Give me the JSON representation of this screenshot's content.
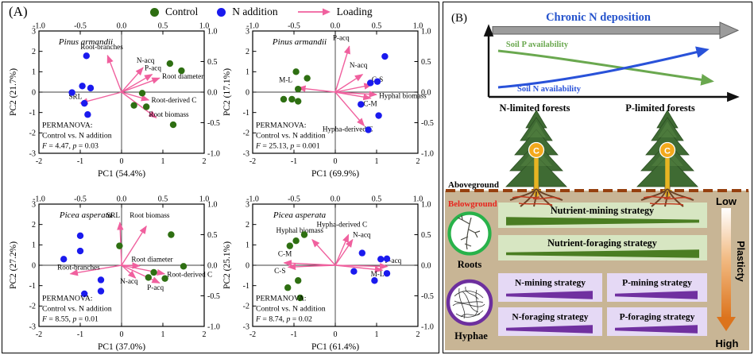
{
  "colors": {
    "control": "#2e6f12",
    "n_addition": "#1a1aee",
    "loading": "#f0609e"
  },
  "panel_a": {
    "label": "(A)",
    "legend": [
      {
        "label": "Control",
        "marker": "dot",
        "color_key": "control"
      },
      {
        "label": "N addition",
        "marker": "dot",
        "color_key": "n_addition"
      },
      {
        "label": "Loading",
        "marker": "arrow",
        "color_key": "loading"
      }
    ]
  },
  "chart_data": [
    {
      "type": "scatter",
      "species": "Pinus armandii",
      "xlabel": "PC1 (54.4%)",
      "ylabel": "PC2 (21.7%)",
      "xlim": [
        -2,
        2
      ],
      "ylim": [
        -3,
        3
      ],
      "loading_lim": [
        -1,
        1
      ],
      "ticks": {
        "bottom": [
          "-2",
          "-1",
          "0",
          "1",
          "2"
        ],
        "left": [
          "-3",
          "-2",
          "-1",
          "0",
          "1",
          "2",
          "3"
        ],
        "top": [
          "-1.0",
          "-0.5",
          "0.0",
          "0.5",
          "1.0"
        ],
        "right": [
          "-1.0",
          "-0.5",
          "0.0",
          "0.5",
          "1.0"
        ]
      },
      "permanova": {
        "title": "PERMANOVA:",
        "subtitle": "Control vs. N addition",
        "F": 4.47,
        "p": 0.03,
        "stat_parts": [
          {
            "t": "F",
            "i": true
          },
          {
            "t": " = 4.47, ",
            "i": false
          },
          {
            "t": "p",
            "i": true
          },
          {
            "t": " = 0.03",
            "i": false
          }
        ]
      },
      "loadings": [
        {
          "label": "Root-branches",
          "vector": [
            -0.17,
            0.6
          ],
          "label_pos": [
            -0.24,
            0.7
          ],
          "anchor": "middle"
        },
        {
          "label": "N-acq",
          "vector": [
            0.26,
            0.4
          ],
          "label_pos": [
            0.29,
            0.48
          ],
          "anchor": "middle"
        },
        {
          "label": "P-acq",
          "vector": [
            0.37,
            0.29
          ],
          "label_pos": [
            0.38,
            0.36
          ],
          "anchor": "middle"
        },
        {
          "label": "Root diameter",
          "vector": [
            0.46,
            0.23
          ],
          "label_pos": [
            0.49,
            0.22
          ],
          "anchor": "start"
        },
        {
          "label": "Root-derived C",
          "vector": [
            0.33,
            -0.13
          ],
          "label_pos": [
            0.36,
            -0.17
          ],
          "anchor": "start"
        },
        {
          "label": "Root biomass",
          "vector": [
            0.42,
            -0.42
          ],
          "label_pos": [
            0.33,
            -0.4
          ],
          "anchor": "start"
        },
        {
          "label": "SRL",
          "vector": [
            -0.5,
            -0.18
          ],
          "label_pos": [
            -0.56,
            -0.11
          ],
          "anchor": "middle"
        }
      ],
      "series": [
        {
          "name": "Control",
          "color_key": "control",
          "points": [
            [
              1.17,
              1.4
            ],
            [
              1.45,
              1.05
            ],
            [
              0.5,
              -0.05
            ],
            [
              0.3,
              -0.65
            ],
            [
              0.6,
              -0.72
            ],
            [
              1.25,
              -1.6
            ]
          ]
        },
        {
          "name": "N addition",
          "color_key": "n_addition",
          "points": [
            [
              -0.85,
              1.78
            ],
            [
              -0.95,
              0.3
            ],
            [
              -0.75,
              0.2
            ],
            [
              -1.2,
              -0.02
            ],
            [
              -0.9,
              -0.55
            ],
            [
              -0.82,
              -1.1
            ]
          ]
        }
      ]
    },
    {
      "type": "scatter",
      "species": "Pinus armandii",
      "xlabel": "PC1 (69.9%)",
      "ylabel": "PC2 (17.1%)",
      "xlim": [
        -2,
        2
      ],
      "ylim": [
        -3,
        3
      ],
      "loading_lim": [
        -1,
        1
      ],
      "ticks": {
        "bottom": [
          "-2",
          "-1",
          "0",
          "1",
          "2"
        ],
        "left": [
          "-3",
          "-2",
          "-1",
          "0",
          "1",
          "2",
          "3"
        ],
        "top": [
          "-1.0",
          "-0.5",
          "0.0",
          "0.5",
          "1.0"
        ],
        "right": [
          "-1.0",
          "-0.5",
          "0.0",
          "0.5",
          "1.0"
        ]
      },
      "permanova": {
        "title": "PERMANOVA:",
        "subtitle": "Control vs. N addition",
        "F": 25.13,
        "p": 0.001,
        "stat_parts": [
          {
            "t": "F",
            "i": true
          },
          {
            "t": " = 25.13, ",
            "i": false
          },
          {
            "t": "p",
            "i": true
          },
          {
            "t": " = 0.001",
            "i": false
          }
        ]
      },
      "loadings": [
        {
          "label": "P-acq",
          "vector": [
            0.17,
            0.75
          ],
          "label_pos": [
            0.07,
            0.85
          ],
          "anchor": "middle"
        },
        {
          "label": "N-acq",
          "vector": [
            0.33,
            0.29
          ],
          "label_pos": [
            0.28,
            0.4
          ],
          "anchor": "middle"
        },
        {
          "label": "C-S",
          "vector": [
            0.44,
            0.12
          ],
          "label_pos": [
            0.51,
            0.17
          ],
          "anchor": "middle"
        },
        {
          "label": "Hyphal biomass",
          "vector": [
            0.5,
            -0.04
          ],
          "label_pos": [
            0.53,
            -0.1
          ],
          "anchor": "start"
        },
        {
          "label": "C-M",
          "vector": [
            0.43,
            -0.1
          ],
          "label_pos": [
            0.34,
            -0.23
          ],
          "anchor": "start"
        },
        {
          "label": "Hypha-derived C",
          "vector": [
            0.35,
            -0.55
          ],
          "label_pos": [
            0.15,
            -0.64
          ],
          "anchor": "middle"
        },
        {
          "label": "M-L",
          "vector": [
            -0.45,
            0.07
          ],
          "label_pos": [
            -0.6,
            0.16
          ],
          "anchor": "middle"
        }
      ],
      "series": [
        {
          "name": "Control",
          "color_key": "control",
          "points": [
            [
              -0.95,
              1.0
            ],
            [
              -0.68,
              0.68
            ],
            [
              -0.9,
              0.15
            ],
            [
              -1.25,
              -0.35
            ],
            [
              -1.05,
              -0.35
            ],
            [
              -0.9,
              -0.45
            ]
          ]
        },
        {
          "name": "N addition",
          "color_key": "n_addition",
          "points": [
            [
              1.2,
              1.75
            ],
            [
              0.85,
              0.45
            ],
            [
              1.02,
              0.52
            ],
            [
              0.62,
              -0.6
            ],
            [
              1.05,
              -1.15
            ],
            [
              0.8,
              -1.85
            ]
          ]
        }
      ]
    },
    {
      "type": "scatter",
      "species": "Picea asperata",
      "xlabel": "PC1 (37.0%)",
      "ylabel": "PC2 (27.2%)",
      "xlim": [
        -2,
        2
      ],
      "ylim": [
        -3,
        3
      ],
      "loading_lim": [
        -1,
        1
      ],
      "ticks": {
        "bottom": [
          "-2",
          "-1",
          "0",
          "1",
          "2"
        ],
        "left": [
          "-3",
          "-2",
          "-1",
          "0",
          "1",
          "2",
          "3"
        ],
        "top": [
          "-1.0",
          "-0.5",
          "0.0",
          "0.5",
          "1.0"
        ],
        "right": [
          "-1.0",
          "-0.5",
          "0.0",
          "0.5",
          "1.0"
        ]
      },
      "permanova": {
        "title": "PERMANOVA:",
        "subtitle": "Control vs. N addition",
        "F": 8.55,
        "p": 0.01,
        "stat_parts": [
          {
            "t": "F",
            "i": true
          },
          {
            "t": " = 8.55, ",
            "i": false
          },
          {
            "t": "p",
            "i": true
          },
          {
            "t": " = 0.01",
            "i": false
          }
        ]
      },
      "loadings": [
        {
          "label": "SRL",
          "vector": [
            -0.02,
            0.7
          ],
          "label_pos": [
            -0.1,
            0.78
          ],
          "anchor": "middle"
        },
        {
          "label": "Root biomass",
          "vector": [
            0.3,
            0.64
          ],
          "label_pos": [
            0.34,
            0.78
          ],
          "anchor": "middle"
        },
        {
          "label": "Root diameter",
          "vector": [
            0.22,
            -0.01
          ],
          "label_pos": [
            0.37,
            0.06
          ],
          "anchor": "middle"
        },
        {
          "label": "Root-derived C",
          "vector": [
            0.52,
            -0.14
          ],
          "label_pos": [
            0.55,
            -0.19
          ],
          "anchor": "start"
        },
        {
          "label": "Root-branches",
          "vector": [
            -0.62,
            -0.14
          ],
          "label_pos": [
            -0.52,
            -0.07
          ],
          "anchor": "middle"
        },
        {
          "label": "N-acq",
          "vector": [
            0.17,
            -0.21
          ],
          "label_pos": [
            0.09,
            -0.3
          ],
          "anchor": "middle"
        },
        {
          "label": "P-acq",
          "vector": [
            0.46,
            -0.29
          ],
          "label_pos": [
            0.41,
            -0.4
          ],
          "anchor": "middle"
        }
      ],
      "series": [
        {
          "name": "Control",
          "color_key": "control",
          "points": [
            [
              -0.05,
              0.95
            ],
            [
              1.2,
              1.5
            ],
            [
              1.5,
              -0.05
            ],
            [
              0.78,
              -0.35
            ],
            [
              0.65,
              -0.6
            ],
            [
              1.05,
              -0.65
            ]
          ]
        },
        {
          "name": "N addition",
          "color_key": "n_addition",
          "points": [
            [
              -1.4,
              0.3
            ],
            [
              -1.0,
              1.45
            ],
            [
              -1.0,
              0.7
            ],
            [
              -0.5,
              -0.72
            ],
            [
              -0.9,
              -1.4
            ],
            [
              -0.5,
              -1.27
            ]
          ]
        }
      ]
    },
    {
      "type": "scatter",
      "species": "Picea asperata",
      "xlabel": "PC1 (61.4%)",
      "ylabel": "PC2 (25.1%)",
      "xlim": [
        -2,
        2
      ],
      "ylim": [
        -3,
        3
      ],
      "loading_lim": [
        -1,
        1
      ],
      "ticks": {
        "bottom": [
          "-2",
          "-1",
          "0",
          "1",
          "2"
        ],
        "left": [
          "-3",
          "-2",
          "-1",
          "0",
          "1",
          "2",
          "3"
        ],
        "top": [
          "-1.0",
          "-0.5",
          "0.0",
          "0.5",
          "1.0"
        ],
        "right": [
          "-1.0",
          "-0.5",
          "0.0",
          "0.5",
          "1.0"
        ]
      },
      "permanova": {
        "title": "PERMANOVA:",
        "subtitle": "Control vs. N addition",
        "F": 8.74,
        "p": 0.02,
        "stat_parts": [
          {
            "t": "F",
            "i": true
          },
          {
            "t": " = 8.74, ",
            "i": false
          },
          {
            "t": "p",
            "i": true
          },
          {
            "t": " = 0.02",
            "i": false
          }
        ]
      },
      "loadings": [
        {
          "label": "Hyphal biomass",
          "vector": [
            -0.28,
            0.42
          ],
          "label_pos": [
            -0.43,
            0.53
          ],
          "anchor": "middle"
        },
        {
          "label": "Hypha-derived C",
          "vector": [
            0.16,
            0.5
          ],
          "label_pos": [
            0.08,
            0.63
          ],
          "anchor": "middle"
        },
        {
          "label": "N-acq",
          "vector": [
            0.21,
            0.42
          ],
          "label_pos": [
            0.32,
            0.46
          ],
          "anchor": "middle"
        },
        {
          "label": "C-M",
          "vector": [
            -0.62,
            0.04
          ],
          "label_pos": [
            -0.61,
            0.15
          ],
          "anchor": "middle"
        },
        {
          "label": "C-S",
          "vector": [
            -0.57,
            -0.03
          ],
          "label_pos": [
            -0.67,
            -0.13
          ],
          "anchor": "middle"
        },
        {
          "label": "P-acq",
          "vector": [
            0.63,
            -0.02
          ],
          "label_pos": [
            0.7,
            0.04
          ],
          "anchor": "middle"
        },
        {
          "label": "M-L",
          "vector": [
            0.57,
            -0.08
          ],
          "label_pos": [
            0.51,
            -0.18
          ],
          "anchor": "middle"
        }
      ],
      "series": [
        {
          "name": "Control",
          "color_key": "control",
          "points": [
            [
              -0.75,
              1.5
            ],
            [
              -0.95,
              1.2
            ],
            [
              -1.1,
              0.95
            ],
            [
              -0.9,
              -0.75
            ],
            [
              -1.15,
              -1.1
            ],
            [
              -0.85,
              -1.6
            ]
          ]
        },
        {
          "name": "N addition",
          "color_key": "n_addition",
          "points": [
            [
              0.65,
              0.6
            ],
            [
              1.1,
              0.3
            ],
            [
              1.25,
              0.32
            ],
            [
              0.45,
              -0.3
            ],
            [
              1.25,
              -0.4
            ],
            [
              0.95,
              -0.75
            ]
          ]
        }
      ]
    },
    {
      "type": "line",
      "title": "Chronic N deposition",
      "x_categories": [
        "N-limited forests",
        "P-limited forests"
      ],
      "series": [
        {
          "name": "Soil P availability",
          "color": "#6aa84f",
          "trend": "decreasing"
        },
        {
          "name": "Soil N availability",
          "color": "#2952d9",
          "trend": "increasing"
        }
      ]
    }
  ],
  "panel_b": {
    "label": "(B)",
    "title": "Chronic N deposition",
    "soil_p": "Soil P availability",
    "soil_n": "Soil N availability",
    "n_forest": "N-limited forests",
    "p_forest": "P-limited forests",
    "aboveground": "Aboveground",
    "belowground": "Belowground",
    "roots": "Roots",
    "hyphae": "Hyphae",
    "c_label": "C",
    "low": "Low",
    "high": "High",
    "plasticity": "Plasticty",
    "strategies": {
      "root": [
        {
          "label": "Nutrient-mining strategy",
          "trend": "decreasing"
        },
        {
          "label": "Nutrient-foraging strategy",
          "trend": "increasing"
        }
      ],
      "hyphae": [
        {
          "label": "N-mining strategy",
          "trend": "increasing"
        },
        {
          "label": "P-mining strategy",
          "trend": "increasing"
        },
        {
          "label": "N-foraging strategy",
          "trend": "increasing"
        },
        {
          "label": "P-foraging strategy",
          "trend": "increasing"
        }
      ]
    },
    "colors": {
      "title": "#2553cc",
      "soil_p": "#6aa84f",
      "soil_n": "#2952d9",
      "gray_arrow": "#9c9c9c",
      "tan": "#c8b595",
      "dashed": "#96400f",
      "belowground": "#e8231c",
      "root_box": "#d7e6c2",
      "root_wedge": "#4a7d22",
      "hyphae_box": "#e5d9f5",
      "hyphae_wedge": "#7030a0",
      "roots_ring": "#28b24a",
      "hyphae_ring": "#6d2f9e",
      "plasticity_arrow": "#dc731c",
      "tree_green": "#3f6b33",
      "c_gold": "#f3a91c",
      "trunk_arrow": "#e8b422"
    }
  }
}
